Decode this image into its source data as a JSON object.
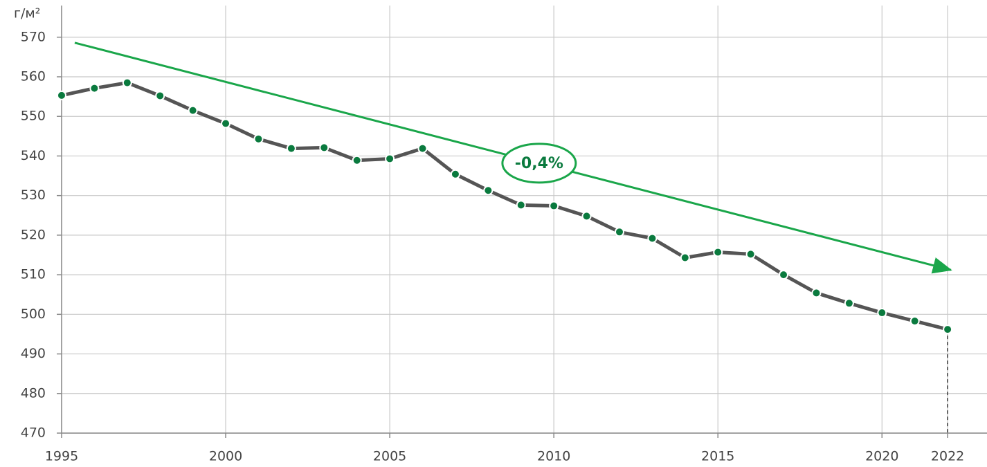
{
  "chart_data": {
    "type": "line",
    "y_unit_label": "г/м²",
    "x": [
      1995,
      1996,
      1997,
      1998,
      1999,
      2000,
      2001,
      2002,
      2003,
      2004,
      2005,
      2006,
      2007,
      2008,
      2009,
      2010,
      2011,
      2012,
      2013,
      2014,
      2015,
      2016,
      2017,
      2018,
      2019,
      2020,
      2021,
      2022
    ],
    "series": [
      {
        "color": "#555555",
        "marker_color": "#0a7a3e",
        "values": [
          555.3,
          557.1,
          558.5,
          555.2,
          551.5,
          548.2,
          544.3,
          541.9,
          542.1,
          538.9,
          539.3,
          541.9,
          535.4,
          531.3,
          527.6,
          527.4,
          524.8,
          520.8,
          519.2,
          514.3,
          515.7,
          515.2,
          510.0,
          505.4,
          502.8,
          500.4,
          498.3,
          496.2
        ]
      }
    ],
    "xlim": [
      1995,
      2023.2
    ],
    "xticks": [
      1995,
      2000,
      2005,
      2010,
      2015,
      2020,
      2022
    ],
    "ylim": [
      470,
      578
    ],
    "yticks": [
      470,
      480,
      490,
      500,
      510,
      520,
      530,
      540,
      550,
      560,
      570
    ],
    "grid": true,
    "trend": {
      "label": "-0,4%",
      "color": "#1aa64a",
      "x": [
        1995.4,
        2022.1
      ],
      "y": [
        568.6,
        511.2
      ]
    }
  }
}
